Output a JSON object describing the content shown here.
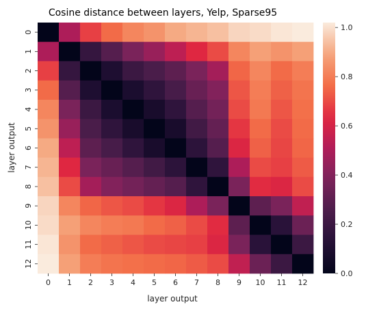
{
  "chart_data": {
    "type": "heatmap",
    "title": "Cosine distance between layers, Yelp, Sparse95",
    "xlabel": "layer output",
    "ylabel": "layer output",
    "x_categories": [
      "0",
      "1",
      "2",
      "3",
      "4",
      "5",
      "6",
      "7",
      "8",
      "9",
      "10",
      "11",
      "12"
    ],
    "y_categories": [
      "0",
      "1",
      "2",
      "3",
      "4",
      "5",
      "6",
      "7",
      "8",
      "9",
      "10",
      "11",
      "12"
    ],
    "values": [
      [
        0.0,
        0.5,
        0.68,
        0.76,
        0.82,
        0.85,
        0.9,
        0.92,
        0.94,
        0.98,
        0.99,
        1.01,
        1.02
      ],
      [
        0.5,
        0.0,
        0.18,
        0.28,
        0.38,
        0.45,
        0.54,
        0.63,
        0.7,
        0.82,
        0.88,
        0.85,
        0.88
      ],
      [
        0.68,
        0.18,
        0.0,
        0.1,
        0.2,
        0.25,
        0.3,
        0.38,
        0.48,
        0.75,
        0.82,
        0.76,
        0.8
      ],
      [
        0.76,
        0.28,
        0.1,
        0.0,
        0.09,
        0.16,
        0.24,
        0.33,
        0.4,
        0.72,
        0.8,
        0.74,
        0.78
      ],
      [
        0.82,
        0.38,
        0.2,
        0.09,
        0.0,
        0.08,
        0.16,
        0.28,
        0.36,
        0.7,
        0.79,
        0.72,
        0.77
      ],
      [
        0.85,
        0.45,
        0.25,
        0.16,
        0.08,
        0.0,
        0.08,
        0.22,
        0.32,
        0.66,
        0.76,
        0.7,
        0.76
      ],
      [
        0.9,
        0.54,
        0.3,
        0.24,
        0.16,
        0.08,
        0.0,
        0.15,
        0.28,
        0.62,
        0.74,
        0.69,
        0.75
      ],
      [
        0.92,
        0.63,
        0.38,
        0.33,
        0.28,
        0.22,
        0.15,
        0.0,
        0.16,
        0.5,
        0.7,
        0.68,
        0.73
      ],
      [
        0.94,
        0.7,
        0.48,
        0.4,
        0.36,
        0.32,
        0.28,
        0.16,
        0.0,
        0.38,
        0.64,
        0.62,
        0.7
      ],
      [
        0.98,
        0.82,
        0.75,
        0.72,
        0.7,
        0.66,
        0.62,
        0.5,
        0.38,
        0.0,
        0.3,
        0.38,
        0.55
      ],
      [
        0.99,
        0.88,
        0.82,
        0.8,
        0.79,
        0.76,
        0.74,
        0.7,
        0.64,
        0.3,
        0.0,
        0.14,
        0.34
      ],
      [
        1.01,
        0.85,
        0.76,
        0.74,
        0.72,
        0.7,
        0.69,
        0.68,
        0.62,
        0.38,
        0.14,
        0.0,
        0.2
      ],
      [
        1.02,
        0.88,
        0.8,
        0.78,
        0.77,
        0.76,
        0.75,
        0.73,
        0.7,
        0.55,
        0.34,
        0.2,
        0.0
      ]
    ],
    "colorbar": {
      "min": 0.0,
      "max": 1.02,
      "ticks": [
        "0.0",
        "0.2",
        "0.4",
        "0.6",
        "0.8",
        "1.0"
      ],
      "tick_values": [
        0.0,
        0.2,
        0.4,
        0.6,
        0.8,
        1.0
      ]
    },
    "colormap": "rocket",
    "grid": false
  }
}
